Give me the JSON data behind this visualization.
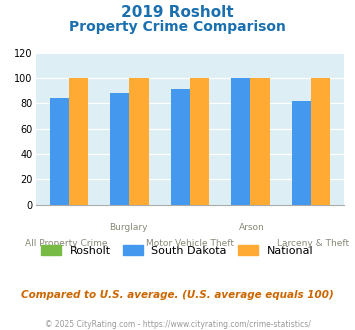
{
  "title_line1": "2019 Rosholt",
  "title_line2": "Property Crime Comparison",
  "title_color": "#1a6faf",
  "sd_values": [
    84,
    88,
    91,
    100,
    82
  ],
  "national_values": [
    100,
    100,
    100,
    100,
    100
  ],
  "rosholt_color": "#77bb44",
  "sd_color": "#4499ee",
  "national_color": "#ffaa33",
  "bg_color": "#ddeef5",
  "ylim": [
    0,
    120
  ],
  "yticks": [
    0,
    20,
    40,
    60,
    80,
    100,
    120
  ],
  "bar_width": 0.32,
  "top_labels": [
    [
      1,
      "Burglary"
    ],
    [
      3,
      "Arson"
    ]
  ],
  "bot_labels": [
    [
      0,
      "All Property Crime"
    ],
    [
      2,
      "Motor Vehicle Theft"
    ],
    [
      4,
      "Larceny & Theft"
    ]
  ],
  "footnote": "Compared to U.S. average. (U.S. average equals 100)",
  "footnote_color": "#cc6600",
  "copyright": "© 2025 CityRating.com - https://www.cityrating.com/crime-statistics/",
  "copyright_color": "#999999"
}
